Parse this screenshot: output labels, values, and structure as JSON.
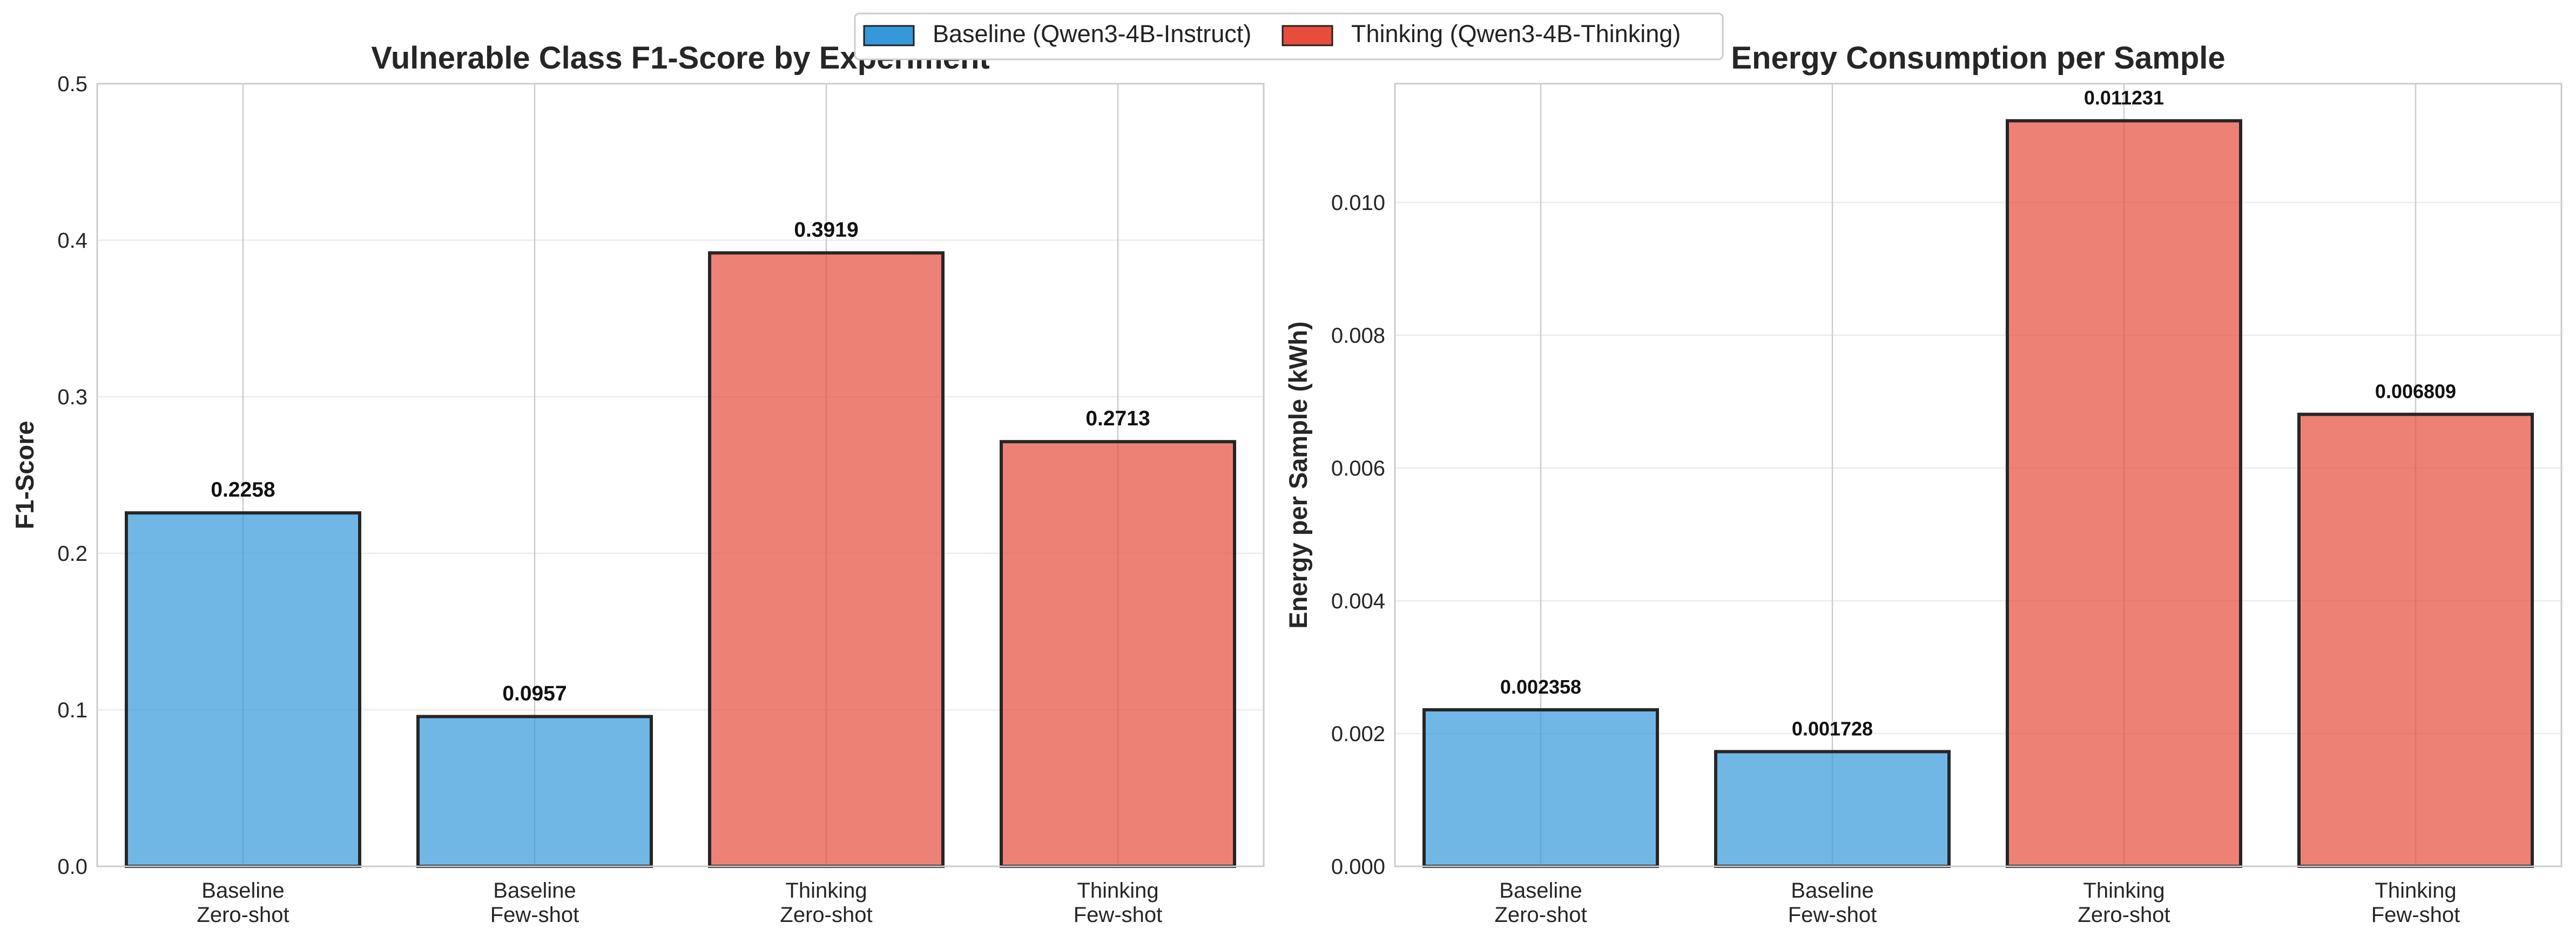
{
  "legend": {
    "position": "top-center",
    "items": [
      {
        "label": "Baseline (Qwen3-4B-Instruct)",
        "color": "#3498db"
      },
      {
        "label": "Thinking (Qwen3-4B-Thinking)",
        "color": "#e74c3c"
      }
    ]
  },
  "chart_data": [
    {
      "type": "bar",
      "title": "Vulnerable Class F1-Score by Experiment",
      "xlabel": "",
      "ylabel": "F1-Score",
      "categories": [
        [
          "Baseline",
          "Zero-shot"
        ],
        [
          "Baseline",
          "Few-shot"
        ],
        [
          "Thinking",
          "Zero-shot"
        ],
        [
          "Thinking",
          "Few-shot"
        ]
      ],
      "series": [
        {
          "values": [
            0.2258,
            0.0957,
            0.3919,
            0.2713
          ],
          "colors": [
            "#3498db",
            "#3498db",
            "#e74c3c",
            "#e74c3c"
          ]
        }
      ],
      "data_labels": [
        "0.2258",
        "0.0957",
        "0.3919",
        "0.2713"
      ],
      "ylim": [
        0,
        0.5
      ],
      "yticks": [
        0.0,
        0.1,
        0.2,
        0.3,
        0.4,
        0.5
      ],
      "ytick_labels": [
        "0.0",
        "0.1",
        "0.2",
        "0.3",
        "0.4",
        "0.5"
      ],
      "grid": true
    },
    {
      "type": "bar",
      "title": "Energy Consumption per Sample",
      "xlabel": "",
      "ylabel": "Energy per Sample (kWh)",
      "categories": [
        [
          "Baseline",
          "Zero-shot"
        ],
        [
          "Baseline",
          "Few-shot"
        ],
        [
          "Thinking",
          "Zero-shot"
        ],
        [
          "Thinking",
          "Few-shot"
        ]
      ],
      "series": [
        {
          "values": [
            0.002358,
            0.001728,
            0.011231,
            0.006809
          ],
          "colors": [
            "#3498db",
            "#3498db",
            "#e74c3c",
            "#e74c3c"
          ]
        }
      ],
      "data_labels": [
        "0.002358",
        "0.001728",
        "0.011231",
        "0.006809"
      ],
      "ylim": [
        0,
        0.01179
      ],
      "yticks": [
        0.0,
        0.002,
        0.004,
        0.006,
        0.008,
        0.01
      ],
      "ytick_labels": [
        "0.000",
        "0.002",
        "0.004",
        "0.006",
        "0.008",
        "0.010"
      ],
      "grid": true
    }
  ]
}
